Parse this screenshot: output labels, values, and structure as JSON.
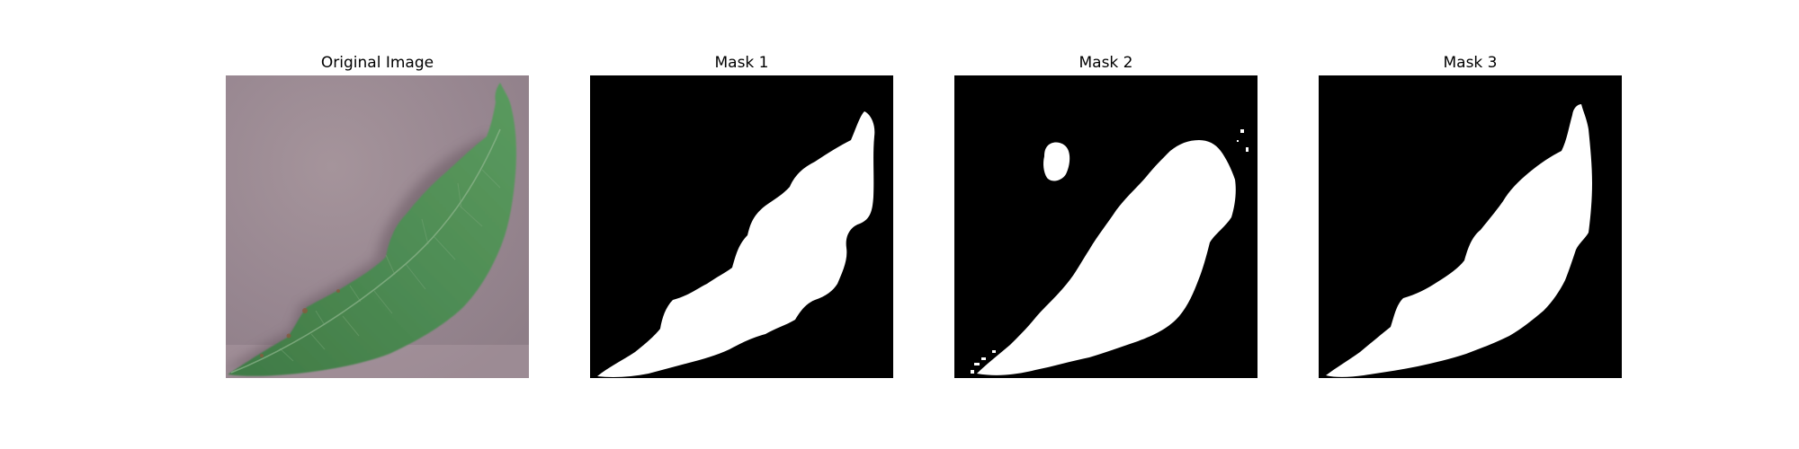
{
  "panels": [
    {
      "title": "Original Image"
    },
    {
      "title": "Mask 1"
    },
    {
      "title": "Mask 2"
    },
    {
      "title": "Mask 3"
    }
  ],
  "colors": {
    "background": "#ffffff",
    "mask_background": "#000000",
    "mask_foreground": "#ffffff",
    "leaf_green": "#4e8a52",
    "surface_mauve": "#9d8a92"
  }
}
